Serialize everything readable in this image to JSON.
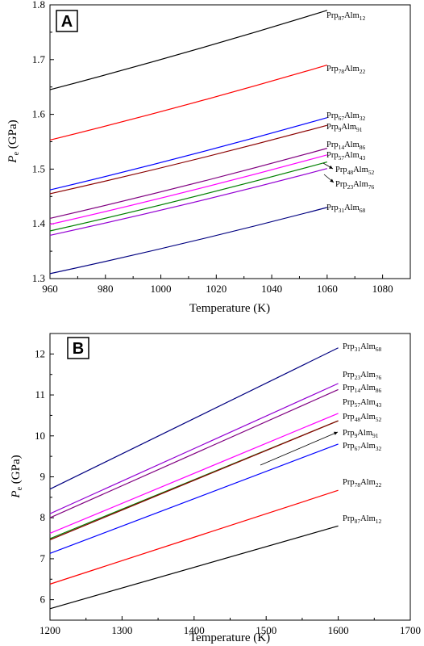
{
  "chart_data": [
    {
      "type": "line",
      "panel": "A",
      "xlabel": "Temperature (K)",
      "ylabel": "P",
      "ylabel_sub": "e",
      "ylabel_unit": " (GPa)",
      "xlim": [
        960,
        1090
      ],
      "ylim": [
        1.3,
        1.8
      ],
      "x_ticks": [
        "960",
        "980",
        "1000",
        "1020",
        "1040",
        "1060",
        "1080"
      ],
      "y_ticks": [
        "1.3",
        "1.4",
        "1.5",
        "1.6",
        "1.7",
        "1.8"
      ],
      "series": [
        {
          "name": "Prp87Alm12",
          "base": "Prp",
          "sub1": "87",
          "mid": "Alm",
          "sub2": "12",
          "color": "#000000",
          "x": [
            960,
            1060
          ],
          "y": [
            1.645,
            1.79
          ]
        },
        {
          "name": "Prp78Alm22",
          "base": "Prp",
          "sub1": "78",
          "mid": "Alm",
          "sub2": "22",
          "color": "#ff0000",
          "x": [
            960,
            1060
          ],
          "y": [
            1.553,
            1.69
          ]
        },
        {
          "name": "Prp67Alm32",
          "base": "Prp",
          "sub1": "67",
          "mid": "Alm",
          "sub2": "32",
          "color": "#0000ff",
          "x": [
            960,
            1060
          ],
          "y": [
            1.462,
            1.594
          ]
        },
        {
          "name": "Prp9Alm91",
          "base": "Prp",
          "sub1": "9",
          "mid": "Alm",
          "sub2": "91",
          "color": "#8b0000",
          "x": [
            960,
            1060
          ],
          "y": [
            1.455,
            1.58
          ]
        },
        {
          "name": "Prp14Alm86",
          "base": "Prp",
          "sub1": "14",
          "mid": "Alm",
          "sub2": "86",
          "color": "#800080",
          "x": [
            960,
            1060
          ],
          "y": [
            1.41,
            1.538
          ]
        },
        {
          "name": "Prp57Alm43",
          "base": "Prp",
          "sub1": "57",
          "mid": "Alm",
          "sub2": "43",
          "color": "#ff00ff",
          "x": [
            960,
            1060
          ],
          "y": [
            1.399,
            1.526
          ]
        },
        {
          "name": "Prp48Alm52",
          "base": "Prp",
          "sub1": "48",
          "mid": "Alm",
          "sub2": "52",
          "color": "#008000",
          "x": [
            960,
            1060
          ],
          "y": [
            1.387,
            1.513
          ]
        },
        {
          "name": "Prp23Alm76",
          "base": "Prp",
          "sub1": "23",
          "mid": "Alm",
          "sub2": "76",
          "color": "#9400d3",
          "x": [
            960,
            1060
          ],
          "y": [
            1.379,
            1.501
          ]
        },
        {
          "name": "Prp31Alm68",
          "base": "Prp",
          "sub1": "31",
          "mid": "Alm",
          "sub2": "68",
          "color": "#000080",
          "x": [
            960,
            1060
          ],
          "y": [
            1.309,
            1.43
          ]
        }
      ]
    },
    {
      "type": "line",
      "panel": "B",
      "xlabel": "Temperature (K)",
      "ylabel": "P",
      "ylabel_sub": "e",
      "ylabel_unit": " (GPa)",
      "xlim": [
        1200,
        1700
      ],
      "ylim": [
        5.5,
        12.5
      ],
      "x_ticks": [
        "1200",
        "1300",
        "1400",
        "1500",
        "1600",
        "1700"
      ],
      "y_ticks": [
        "6",
        "7",
        "8",
        "9",
        "10",
        "11",
        "12"
      ],
      "series": [
        {
          "name": "Prp31Alm68",
          "base": "Prp",
          "sub1": "31",
          "mid": "Alm",
          "sub2": "68",
          "color": "#000080",
          "x": [
            1200,
            1600
          ],
          "y": [
            8.7,
            12.15
          ]
        },
        {
          "name": "Prp23Alm76",
          "base": "Prp",
          "sub1": "23",
          "mid": "Alm",
          "sub2": "76",
          "color": "#9400d3",
          "x": [
            1200,
            1600
          ],
          "y": [
            8.1,
            11.28
          ]
        },
        {
          "name": "Prp14Alm86",
          "base": "Prp",
          "sub1": "14",
          "mid": "Alm",
          "sub2": "86",
          "color": "#800080",
          "x": [
            1200,
            1600
          ],
          "y": [
            8.0,
            11.13
          ]
        },
        {
          "name": "Prp57Alm43",
          "base": "Prp",
          "sub1": "57",
          "mid": "Alm",
          "sub2": "43",
          "color": "#ff00ff",
          "x": [
            1200,
            1600
          ],
          "y": [
            7.62,
            10.55
          ]
        },
        {
          "name": "Prp48Alm52",
          "base": "Prp",
          "sub1": "48",
          "mid": "Alm",
          "sub2": "52",
          "color": "#008000",
          "x": [
            1200,
            1600
          ],
          "y": [
            7.49,
            10.37
          ]
        },
        {
          "name": "Prp9Alm91",
          "base": "Prp",
          "sub1": "9",
          "mid": "Alm",
          "sub2": "91",
          "color": "#8b0000",
          "x": [
            1200,
            1600
          ],
          "y": [
            7.46,
            10.37
          ]
        },
        {
          "name": "Prp67Alm32",
          "base": "Prp",
          "sub1": "67",
          "mid": "Alm",
          "sub2": "32",
          "color": "#0000ff",
          "x": [
            1200,
            1600
          ],
          "y": [
            7.13,
            9.8
          ]
        },
        {
          "name": "Prp78Alm22",
          "base": "Prp",
          "sub1": "78",
          "mid": "Alm",
          "sub2": "22",
          "color": "#ff0000",
          "x": [
            1200,
            1600
          ],
          "y": [
            6.38,
            8.67
          ]
        },
        {
          "name": "Prp87Alm12",
          "base": "Prp",
          "sub1": "87",
          "mid": "Alm",
          "sub2": "12",
          "color": "#000000",
          "x": [
            1200,
            1600
          ],
          "y": [
            5.78,
            7.8
          ]
        }
      ]
    }
  ]
}
